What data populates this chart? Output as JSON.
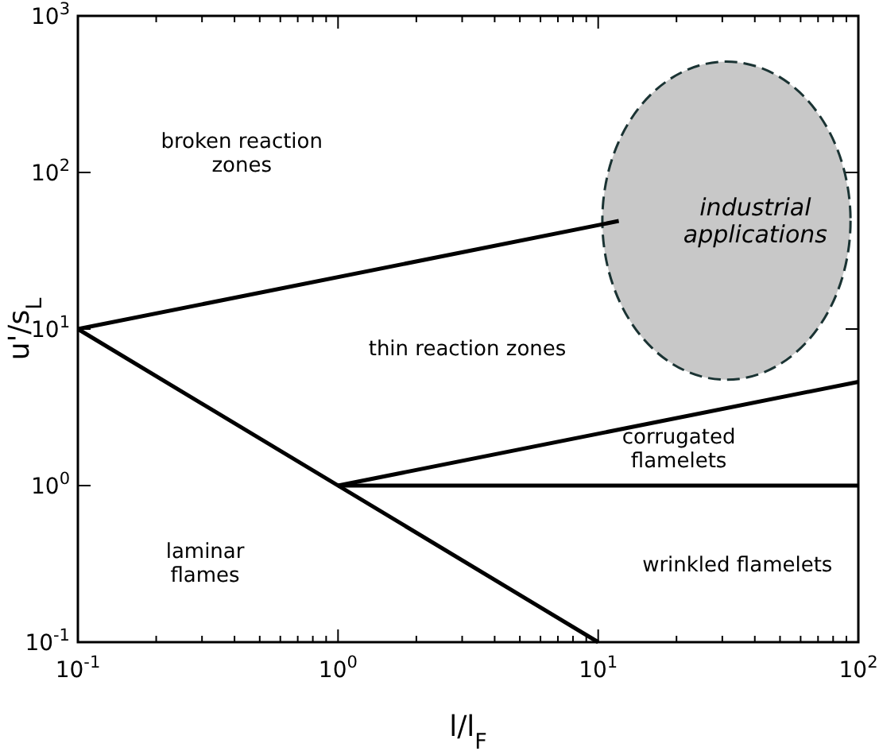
{
  "chart_data": {
    "type": "line",
    "xlabel": "l/l$_{F}$",
    "ylabel": "u'/s$_{L}$",
    "log": "xy",
    "grid": false,
    "marker": "none",
    "line_style": "solid",
    "xlim": [
      0.1,
      100
    ],
    "ylim": [
      0.1,
      1000
    ],
    "xticks": [
      {
        "value": 0.1,
        "label": "10$^{-1}$"
      },
      {
        "value": 0.2,
        "label": null
      },
      {
        "value": 0.3,
        "label": null
      },
      {
        "value": 0.4,
        "label": null
      },
      {
        "value": 0.5,
        "label": null
      },
      {
        "value": 0.6,
        "label": null
      },
      {
        "value": 0.7,
        "label": null
      },
      {
        "value": 0.8,
        "label": null
      },
      {
        "value": 0.9,
        "label": null
      },
      {
        "value": 1,
        "label": "10$^{0}$"
      },
      {
        "value": 2,
        "label": null
      },
      {
        "value": 3,
        "label": null
      },
      {
        "value": 4,
        "label": null
      },
      {
        "value": 5,
        "label": null
      },
      {
        "value": 6,
        "label": null
      },
      {
        "value": 7,
        "label": null
      },
      {
        "value": 8,
        "label": null
      },
      {
        "value": 9,
        "label": null
      },
      {
        "value": 10,
        "label": "10$^{1}$"
      },
      {
        "value": 20,
        "label": null
      },
      {
        "value": 30,
        "label": null
      },
      {
        "value": 40,
        "label": null
      },
      {
        "value": 50,
        "label": null
      },
      {
        "value": 60,
        "label": null
      },
      {
        "value": 70,
        "label": null
      },
      {
        "value": 80,
        "label": null
      },
      {
        "value": 90,
        "label": null
      },
      {
        "value": 100,
        "label": "10$^{2}$"
      }
    ],
    "yticks": [
      {
        "value": 0.1,
        "label": "10$^{-1}$"
      },
      {
        "value": 1,
        "label": "10$^{0}$"
      },
      {
        "value": 10,
        "label": "10$^{1}$"
      },
      {
        "value": 100,
        "label": "10$^{2}$"
      },
      {
        "value": 1000,
        "label": "10$^{3}$"
      }
    ],
    "series": [
      {
        "color": "#000000",
        "x": [
          0.1,
          12
        ],
        "values": [
          10,
          49
        ]
      },
      {
        "color": "#000000",
        "x": [
          0.1,
          10
        ],
        "values": [
          10,
          0.1
        ]
      },
      {
        "color": "#000000",
        "x": [
          1,
          100
        ],
        "values": [
          1,
          4.6
        ]
      },
      {
        "color": "#000000",
        "x": [
          1,
          100
        ],
        "values": [
          1,
          1
        ]
      }
    ],
    "annotations": [
      "industrial\napplications",
      "broken reaction\nzones",
      "thin reaction zones",
      "corrugated\nflamelets",
      "laminar\nflames",
      "wrinkled flamelets"
    ]
  }
}
